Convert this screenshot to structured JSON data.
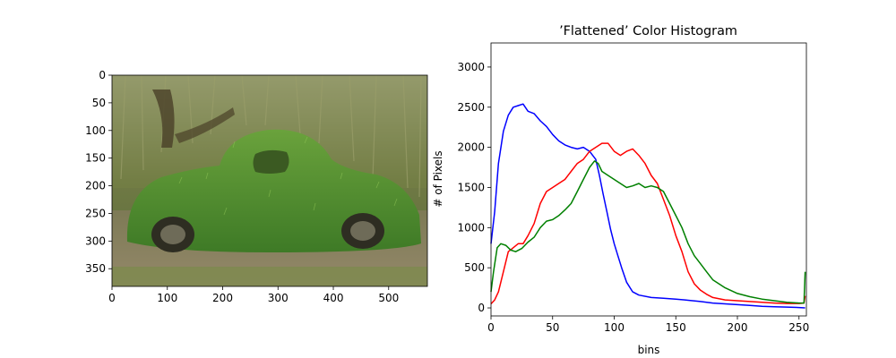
{
  "image_panel": {
    "xticks": [
      "0",
      "100",
      "200",
      "300",
      "400",
      "500"
    ],
    "yticks": [
      "0",
      "50",
      "100",
      "150",
      "200",
      "250",
      "300",
      "350"
    ]
  },
  "chart_data": {
    "type": "line",
    "title": "’Flattened’ Color Histogram",
    "xlabel": "bins",
    "ylabel": "# of Pixels",
    "xlim": [
      0,
      256
    ],
    "ylim": [
      -100,
      3300
    ],
    "xticks": [
      0,
      50,
      100,
      150,
      200,
      250
    ],
    "yticks": [
      0,
      500,
      1000,
      1500,
      2000,
      2500,
      3000
    ],
    "grid": false,
    "series": [
      {
        "color": "#0000ff",
        "x": [
          0,
          3,
          6,
          10,
          14,
          18,
          22,
          26,
          30,
          35,
          40,
          45,
          50,
          55,
          60,
          65,
          70,
          75,
          80,
          85,
          88,
          91,
          94,
          97,
          100,
          103,
          106,
          110,
          115,
          120,
          130,
          140,
          150,
          160,
          170,
          180,
          190,
          200,
          210,
          220,
          230,
          240,
          250,
          255
        ],
        "y": [
          800,
          1200,
          1800,
          2200,
          2400,
          2500,
          2520,
          2540,
          2450,
          2420,
          2330,
          2260,
          2160,
          2080,
          2030,
          2000,
          1980,
          2000,
          1950,
          1850,
          1650,
          1420,
          1200,
          980,
          800,
          650,
          500,
          320,
          200,
          160,
          130,
          120,
          110,
          95,
          80,
          60,
          50,
          40,
          30,
          20,
          15,
          10,
          5,
          0
        ]
      },
      {
        "color": "#ff0000",
        "x": [
          0,
          3,
          6,
          10,
          14,
          18,
          22,
          26,
          30,
          35,
          40,
          45,
          50,
          55,
          60,
          65,
          70,
          75,
          80,
          85,
          90,
          95,
          100,
          105,
          110,
          115,
          120,
          125,
          130,
          135,
          140,
          145,
          150,
          155,
          160,
          165,
          170,
          175,
          180,
          190,
          200,
          210,
          220,
          230,
          240,
          250,
          254,
          255
        ],
        "y": [
          50,
          100,
          200,
          450,
          700,
          750,
          800,
          800,
          900,
          1050,
          1300,
          1450,
          1500,
          1550,
          1600,
          1700,
          1800,
          1850,
          1950,
          2000,
          2050,
          2050,
          1950,
          1900,
          1950,
          1980,
          1900,
          1800,
          1650,
          1550,
          1350,
          1150,
          900,
          700,
          450,
          300,
          220,
          170,
          130,
          100,
          90,
          80,
          70,
          60,
          55,
          55,
          60,
          150
        ]
      },
      {
        "color": "#008000",
        "x": [
          0,
          2,
          5,
          8,
          12,
          16,
          20,
          25,
          30,
          35,
          40,
          45,
          50,
          55,
          60,
          65,
          70,
          75,
          80,
          84,
          87,
          90,
          95,
          100,
          105,
          110,
          115,
          120,
          125,
          130,
          135,
          140,
          145,
          150,
          155,
          160,
          165,
          170,
          175,
          180,
          190,
          200,
          210,
          220,
          230,
          240,
          250,
          254,
          255
        ],
        "y": [
          200,
          450,
          750,
          800,
          780,
          720,
          700,
          740,
          820,
          880,
          1000,
          1080,
          1100,
          1150,
          1220,
          1300,
          1450,
          1600,
          1750,
          1830,
          1800,
          1700,
          1650,
          1600,
          1550,
          1500,
          1520,
          1550,
          1500,
          1520,
          1500,
          1450,
          1300,
          1150,
          1000,
          800,
          650,
          550,
          450,
          350,
          250,
          180,
          140,
          110,
          90,
          70,
          60,
          60,
          450
        ]
      }
    ]
  }
}
